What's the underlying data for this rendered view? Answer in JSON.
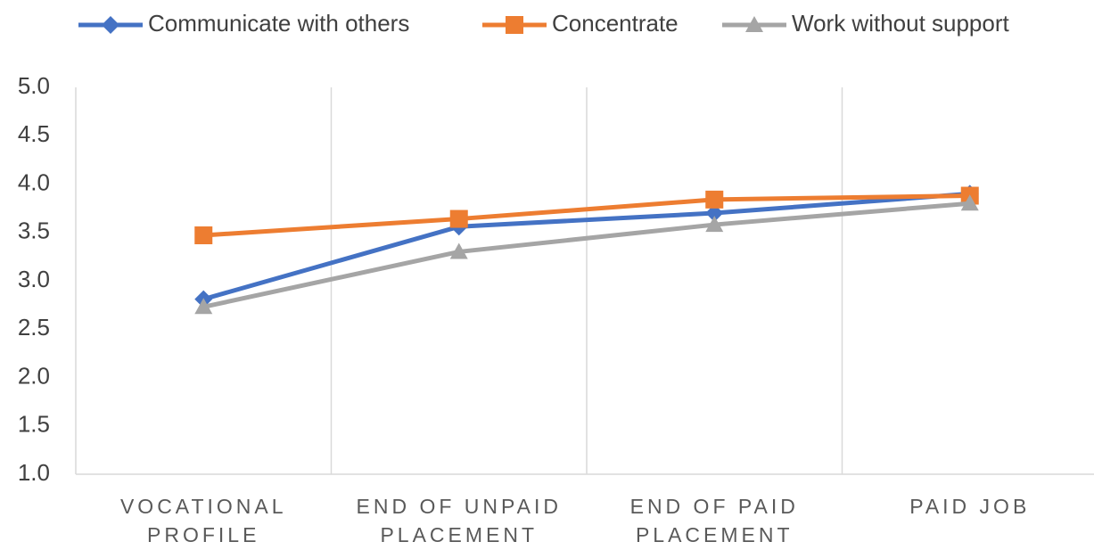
{
  "chart_data": {
    "type": "line",
    "categories": [
      "VOCATIONAL PROFILE",
      "END OF UNPAID PLACEMENT",
      "END OF PAID PLACEMENT",
      "PAID JOB"
    ],
    "series": [
      {
        "name": "Communicate with others",
        "color": "#4472c4",
        "marker": "diamond",
        "values": [
          2.81,
          3.56,
          3.7,
          3.9
        ]
      },
      {
        "name": "Concentrate",
        "color": "#ed7d31",
        "marker": "square",
        "values": [
          3.47,
          3.64,
          3.84,
          3.88
        ]
      },
      {
        "name": "Work without support",
        "color": "#a5a5a5",
        "marker": "triangle",
        "values": [
          2.73,
          3.3,
          3.58,
          3.8
        ]
      }
    ],
    "ylim": [
      1,
      5
    ],
    "yticks": [
      {
        "value": 1,
        "label": "1.0"
      },
      1.5,
      {
        "value": 2,
        "label": "2.0"
      },
      2.5,
      {
        "value": 3,
        "label": "3.0"
      },
      3.5,
      {
        "value": 4,
        "label": "4.0"
      },
      4.5,
      {
        "value": 5,
        "label": "5.0"
      }
    ],
    "legend": "top"
  }
}
